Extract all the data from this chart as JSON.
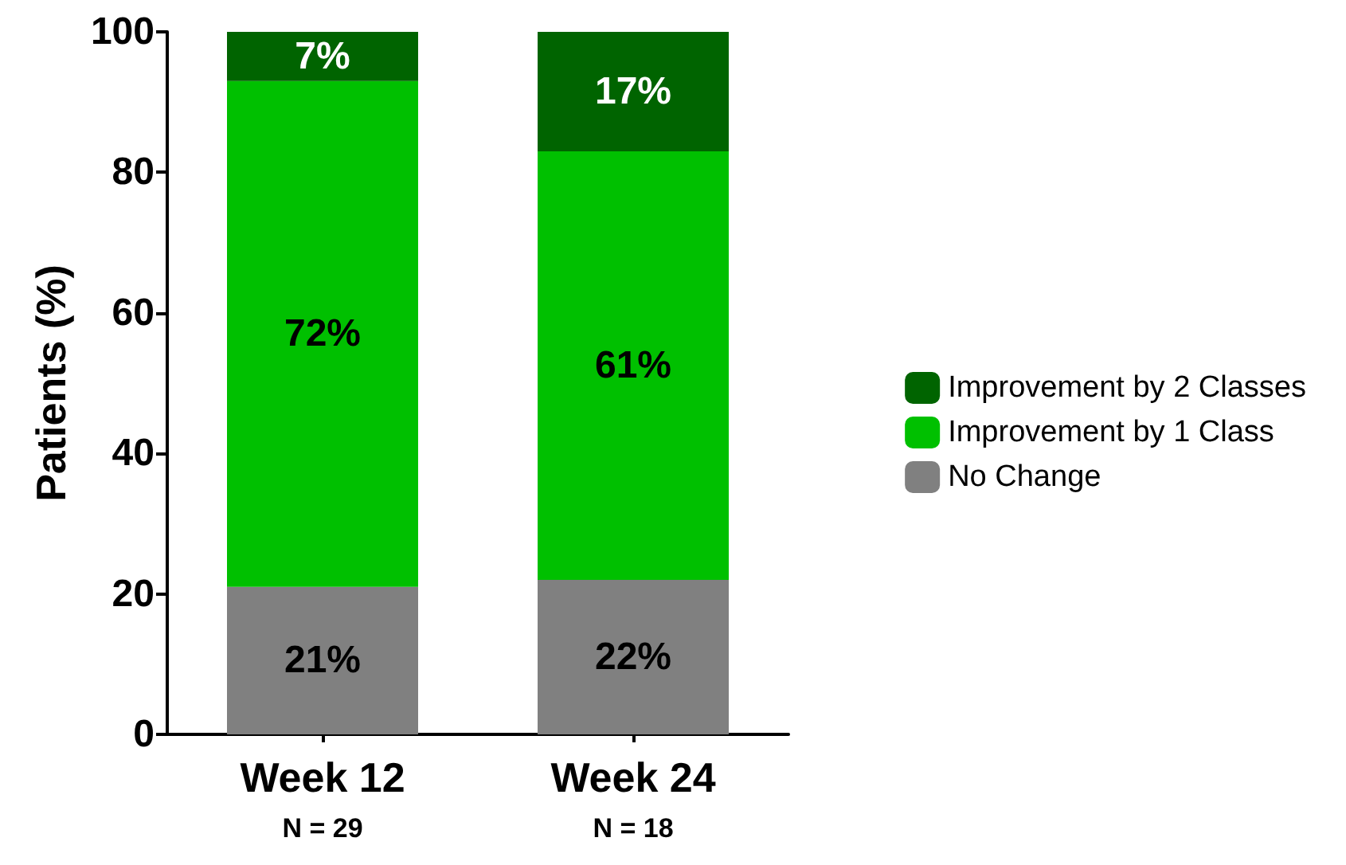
{
  "chart_data": {
    "type": "bar",
    "stacked": true,
    "ylabel": "Patients (%)",
    "categories": [
      "Week 12",
      "Week 24"
    ],
    "series": [
      {
        "name": "No Change",
        "color": "#808080",
        "values": [
          21,
          22
        ],
        "value_labels": [
          "21%",
          "22%"
        ]
      },
      {
        "name": "Improvement by 1 Class",
        "color": "#00c000",
        "values": [
          72,
          61
        ],
        "value_labels": [
          "72%",
          "61%"
        ]
      },
      {
        "name": "Improvement by 2 Classes",
        "color": "#006400",
        "values": [
          7,
          17
        ],
        "value_labels": [
          "7%",
          "17%"
        ]
      }
    ],
    "ylim": [
      0,
      100
    ],
    "yticks": [
      0,
      20,
      40,
      60,
      80,
      100
    ],
    "grid": false,
    "legend": "right",
    "annotations": [
      "N = 29",
      "N = 18"
    ]
  }
}
